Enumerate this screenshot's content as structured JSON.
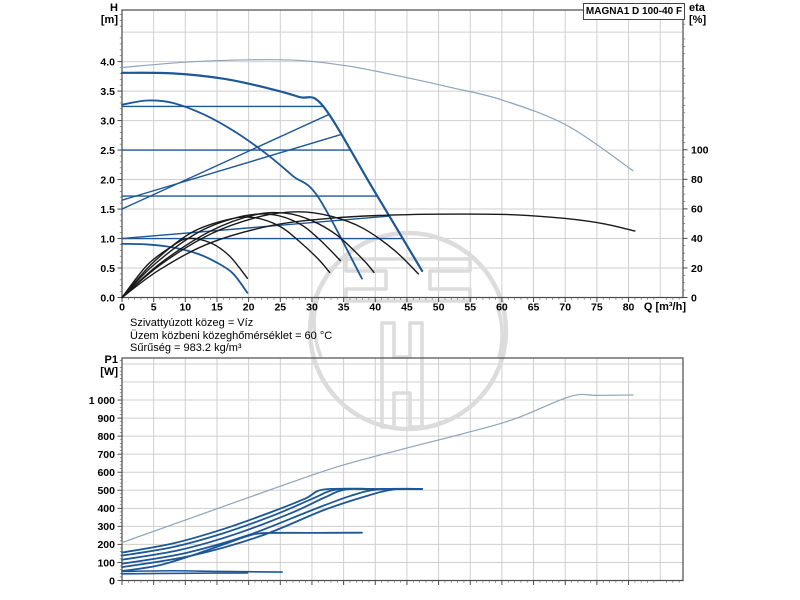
{
  "title_box": {
    "label": "MAGNA1 D 100-40 F"
  },
  "axis_labels": {
    "h_top": "H",
    "h_unit": "[m]",
    "eta_top": "eta",
    "eta_unit": "[%]",
    "p1_top": "P1",
    "p1_unit": "[W]",
    "q": "Q [m³/h]"
  },
  "info_lines": {
    "line1": "Szivattyúzott közeg = Víz",
    "line2": "Üzem közbeni közeghőmérséklet = 60 °C",
    "line3": "Sűrűség = 983.2 kg/m³"
  },
  "colors": {
    "curve_blue": "#1d5796",
    "curve_light_blue": "#8da4bc",
    "curve_black": "#1a1a1a",
    "grid": "#cfcfcf",
    "frame": "#4a4a4a",
    "text": "#000000",
    "watermark": "#dcdcdc"
  },
  "chart_data": [
    {
      "type": "line",
      "title": "MAGNA1 D 100-40 F",
      "xlabel": "Q [m³/h]",
      "ylabel": "H [m]",
      "y2label": "eta [%]",
      "xlim": [
        0,
        88.6
      ],
      "ylim": [
        0,
        4.875
      ],
      "y2lim": [
        0,
        194.6
      ],
      "grid": {
        "x_step": 5,
        "x_max": 85,
        "y_step": 0.5,
        "y_max": 4.5
      },
      "xticks": {
        "values": [
          0,
          5,
          10,
          15,
          20,
          25,
          30,
          35,
          40,
          45,
          50,
          55,
          60,
          65,
          70,
          75,
          80
        ],
        "labels": [
          "0",
          "5",
          "10",
          "15",
          "20",
          "25",
          "30",
          "35",
          "40",
          "45",
          "50",
          "55",
          "60",
          "65",
          "70",
          "75",
          "80"
        ],
        "minor_step": 1
      },
      "yticks": {
        "values": [
          0,
          0.5,
          1,
          1.5,
          2,
          2.5,
          3,
          3.5,
          4
        ],
        "labels": [
          "0.0",
          "0.5",
          "1.0",
          "1.5",
          "2.0",
          "2.5",
          "3.0",
          "3.5",
          "4.0"
        ],
        "minor_step": 0.1
      },
      "y2ticks": {
        "values": [
          0,
          20,
          40,
          60,
          80,
          100
        ],
        "labels": [
          "0",
          "20",
          "40",
          "60",
          "80",
          "100"
        ],
        "minor_step": 5
      },
      "series": [
        {
          "name": "max-speed-curve-parallel",
          "color": "#8da4bc",
          "width": 1.2,
          "axis": "y",
          "points": [
            [
              0,
              3.9
            ],
            [
              10,
              3.99
            ],
            [
              20,
              4.03
            ],
            [
              28,
              4.02
            ],
            [
              36,
              3.92
            ],
            [
              44,
              3.75
            ],
            [
              52,
              3.56
            ],
            [
              60,
              3.35
            ],
            [
              70.4,
              2.91
            ],
            [
              80.7,
              2.15
            ]
          ]
        },
        {
          "name": "max-speed-curve",
          "color": "#1d5796",
          "width": 2.2,
          "axis": "y",
          "points": [
            [
              0,
              3.81
            ],
            [
              8,
              3.8
            ],
            [
              16,
              3.71
            ],
            [
              23,
              3.55
            ],
            [
              28,
              3.4
            ],
            [
              31.8,
              3.24
            ],
            [
              39.6,
              1.85
            ],
            [
              47.4,
              0.45
            ]
          ]
        },
        {
          "name": "mid-speed-curve",
          "color": "#1d5796",
          "width": 1.8,
          "axis": "y",
          "points": [
            [
              0,
              3.27
            ],
            [
              4,
              3.34
            ],
            [
              8,
              3.3
            ],
            [
              13,
              3.1
            ],
            [
              18,
              2.8
            ],
            [
              23,
              2.42
            ],
            [
              27,
              2.06
            ],
            [
              31,
              1.7
            ],
            [
              37.9,
              0.32
            ]
          ]
        },
        {
          "name": "min-speed-curve",
          "color": "#1d5796",
          "width": 1.8,
          "axis": "y",
          "points": [
            [
              0,
              0.91
            ],
            [
              4,
              0.9
            ],
            [
              8,
              0.85
            ],
            [
              12,
              0.74
            ],
            [
              15,
              0.59
            ],
            [
              17.5,
              0.41
            ],
            [
              19.8,
              0.08
            ]
          ]
        },
        {
          "name": "const-pressure-line-3.2",
          "color": "#1d5796",
          "width": 1.4,
          "axis": "y",
          "points": [
            [
              0,
              3.24
            ],
            [
              31.8,
              3.24
            ]
          ]
        },
        {
          "name": "const-pressure-line-2.5",
          "color": "#1d5796",
          "width": 1.4,
          "axis": "y",
          "points": [
            [
              0,
              2.5
            ],
            [
              35.9,
              2.5
            ]
          ]
        },
        {
          "name": "const-pressure-line-1.7",
          "color": "#1d5796",
          "width": 1.4,
          "axis": "y",
          "points": [
            [
              0,
              1.72
            ],
            [
              40.3,
              1.72
            ]
          ]
        },
        {
          "name": "const-pressure-line-1.0",
          "color": "#1d5796",
          "width": 1.4,
          "axis": "y",
          "points": [
            [
              0,
              1.0
            ],
            [
              44.3,
              1.0
            ]
          ]
        },
        {
          "name": "prop-pressure-line-1.5",
          "color": "#1d5796",
          "width": 1.4,
          "axis": "y",
          "points": [
            [
              0,
              1.5
            ],
            [
              32.6,
              3.1
            ]
          ]
        },
        {
          "name": "prop-pressure-line-1.65",
          "color": "#1d5796",
          "width": 1.4,
          "axis": "y",
          "points": [
            [
              0,
              1.65
            ],
            [
              34.5,
              2.76
            ]
          ]
        },
        {
          "name": "prop-pressure-line-1.0b",
          "color": "#1d5796",
          "width": 1.4,
          "axis": "y",
          "points": [
            [
              0,
              1.0
            ],
            [
              42.2,
              1.38
            ]
          ]
        },
        {
          "name": "eta-curve-parallel",
          "color": "#1a1a1a",
          "width": 1.4,
          "axis": "y2",
          "points": [
            [
              0,
              0
            ],
            [
              6,
              19
            ],
            [
              14,
              37
            ],
            [
              24,
              49
            ],
            [
              34,
              54
            ],
            [
              44,
              56
            ],
            [
              54,
              56.5
            ],
            [
              62,
              56
            ],
            [
              70,
              53.5
            ],
            [
              76,
              50
            ],
            [
              81,
              45
            ]
          ]
        },
        {
          "name": "eta-curve-1",
          "color": "#1a1a1a",
          "width": 1.4,
          "axis": "y2",
          "points": [
            [
              0,
              0
            ],
            [
              6,
              22
            ],
            [
              14,
              43
            ],
            [
              22,
              55
            ],
            [
              28,
              58
            ],
            [
              33,
              55
            ],
            [
              38,
              47
            ],
            [
              43,
              32
            ],
            [
              46.8,
              16
            ]
          ]
        },
        {
          "name": "eta-curve-2",
          "color": "#1a1a1a",
          "width": 1.4,
          "axis": "y2",
          "points": [
            [
              0,
              0
            ],
            [
              6,
              23
            ],
            [
              14,
              45
            ],
            [
              21,
              56
            ],
            [
              26,
              57
            ],
            [
              30,
              52
            ],
            [
              34,
              42
            ],
            [
              38,
              26
            ],
            [
              39.8,
              17
            ]
          ]
        },
        {
          "name": "eta-curve-3",
          "color": "#1a1a1a",
          "width": 1.4,
          "axis": "y2",
          "points": [
            [
              0,
              0
            ],
            [
              5,
              22
            ],
            [
              12,
              44
            ],
            [
              19,
              55
            ],
            [
              24,
              56
            ],
            [
              28,
              50
            ],
            [
              31,
              40
            ],
            [
              34.5,
              25
            ]
          ]
        },
        {
          "name": "eta-curve-4",
          "color": "#1a1a1a",
          "width": 1.4,
          "axis": "y2",
          "points": [
            [
              0,
              0
            ],
            [
              5,
              24
            ],
            [
              11,
              44
            ],
            [
              17,
              53
            ],
            [
              21,
              54
            ],
            [
              25,
              48
            ],
            [
              28,
              38
            ],
            [
              31,
              26
            ],
            [
              32.8,
              17
            ]
          ]
        },
        {
          "name": "eta-curve-min",
          "color": "#1a1a1a",
          "width": 1.4,
          "axis": "y2",
          "points": [
            [
              0,
              0
            ],
            [
              4,
              22
            ],
            [
              8,
              35
            ],
            [
              10.5,
              40
            ],
            [
              14,
              37
            ],
            [
              17,
              28
            ],
            [
              19.8,
              13
            ]
          ]
        }
      ]
    },
    {
      "type": "line",
      "title": "",
      "xlabel": "",
      "ylabel": "P1 [W]",
      "xlim": [
        0,
        88.6
      ],
      "ylim": [
        0,
        1233
      ],
      "grid": {
        "x_step": 5,
        "x_max": 85,
        "y_step": 100,
        "y_max": 1200
      },
      "xticks": {
        "values": [
          0,
          5,
          10,
          15,
          20,
          25,
          30,
          35,
          40,
          45,
          50,
          55,
          60,
          65,
          70,
          75,
          80
        ],
        "labels": null,
        "minor_step": 1
      },
      "yticks": {
        "values": [
          0,
          100,
          200,
          300,
          400,
          500,
          600,
          700,
          800,
          900,
          1000
        ],
        "labels": [
          "0",
          "100",
          "200",
          "300",
          "400",
          "500",
          "600",
          "700",
          "800",
          "900",
          "1 000"
        ],
        "minor_step": 20
      },
      "series": [
        {
          "name": "p1-curve-parallel",
          "color": "#8da4bc",
          "width": 1.2,
          "axis": "y",
          "points": [
            [
              0,
              210
            ],
            [
              12,
              360
            ],
            [
              24,
              510
            ],
            [
              34,
              630
            ],
            [
              44,
              725
            ],
            [
              54,
              815
            ],
            [
              62,
              895
            ],
            [
              70.8,
              1020
            ],
            [
              75,
              1026
            ],
            [
              80.7,
              1028
            ]
          ]
        },
        {
          "name": "p1-curve-1",
          "color": "#1d5796",
          "width": 1.8,
          "axis": "y",
          "points": [
            [
              0,
              155
            ],
            [
              8,
              205
            ],
            [
              16,
              285
            ],
            [
              24,
              385
            ],
            [
              29,
              455
            ],
            [
              32,
              505
            ],
            [
              40,
              506
            ],
            [
              47.4,
              507
            ]
          ]
        },
        {
          "name": "p1-curve-2",
          "color": "#1d5796",
          "width": 1.8,
          "axis": "y",
          "points": [
            [
              0,
              138
            ],
            [
              8,
              185
            ],
            [
              16,
              262
            ],
            [
              24,
              362
            ],
            [
              30,
              452
            ],
            [
              34,
              505
            ],
            [
              41,
              506
            ],
            [
              47.4,
              507
            ]
          ]
        },
        {
          "name": "p1-curve-3",
          "color": "#1d5796",
          "width": 1.8,
          "axis": "y",
          "points": [
            [
              0,
              115
            ],
            [
              9,
              168
            ],
            [
              18,
              258
            ],
            [
              27,
              378
            ],
            [
              32,
              460
            ],
            [
              35.5,
              505
            ],
            [
              42,
              506
            ],
            [
              47.4,
              507
            ]
          ]
        },
        {
          "name": "p1-curve-4",
          "color": "#1d5796",
          "width": 1.8,
          "axis": "y",
          "points": [
            [
              0,
              93
            ],
            [
              10,
              152
            ],
            [
              20,
              252
            ],
            [
              30,
              390
            ],
            [
              36,
              468
            ],
            [
              40.5,
              505
            ],
            [
              47.4,
              507
            ]
          ]
        },
        {
          "name": "p1-curve-5",
          "color": "#1d5796",
          "width": 1.8,
          "axis": "y",
          "points": [
            [
              0,
              74
            ],
            [
              11,
              138
            ],
            [
              22,
              248
            ],
            [
              32,
              392
            ],
            [
              39,
              472
            ],
            [
              43,
              505
            ],
            [
              47.4,
              507
            ]
          ]
        },
        {
          "name": "p1-curve-mid",
          "color": "#1d5796",
          "width": 1.8,
          "axis": "y",
          "points": [
            [
              0,
              52
            ],
            [
              6,
              85
            ],
            [
              12,
              150
            ],
            [
              17,
              212
            ],
            [
              20,
              248
            ],
            [
              22.5,
              263
            ],
            [
              30,
              264
            ],
            [
              37.9,
              265
            ]
          ]
        },
        {
          "name": "p1-curve-low",
          "color": "#1d5796",
          "width": 1.6,
          "axis": "y",
          "points": [
            [
              0,
              50
            ],
            [
              8,
              54
            ],
            [
              16,
              50
            ],
            [
              25.3,
              47
            ]
          ]
        },
        {
          "name": "p1-curve-min",
          "color": "#1d5796",
          "width": 1.6,
          "axis": "y",
          "points": [
            [
              0,
              37
            ],
            [
              10,
              40
            ],
            [
              19.8,
              42
            ]
          ]
        }
      ]
    }
  ]
}
